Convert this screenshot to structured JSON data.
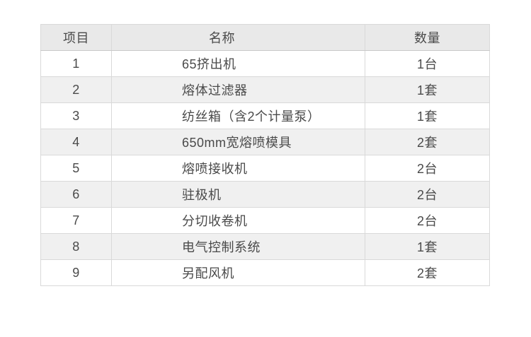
{
  "table": {
    "headers": {
      "item": "项目",
      "name": "名称",
      "qty": "数量"
    },
    "rows": [
      {
        "item": "1",
        "name": "65挤出机",
        "qty": "1台"
      },
      {
        "item": "2",
        "name": "熔体过滤器",
        "qty": "1套"
      },
      {
        "item": "3",
        "name": "纺丝箱（含2个计量泵）",
        "qty": "1套"
      },
      {
        "item": "4",
        "name": "650mm宽熔喷模具",
        "qty": "2套"
      },
      {
        "item": "5",
        "name": "熔喷接收机",
        "qty": "2台"
      },
      {
        "item": "6",
        "name": "驻极机",
        "qty": "2台"
      },
      {
        "item": "7",
        "name": "分切收卷机",
        "qty": "2台"
      },
      {
        "item": "8",
        "name": "电气控制系统",
        "qty": "1套"
      },
      {
        "item": "9",
        "name": "另配风机",
        "qty": "2套"
      }
    ]
  },
  "colors": {
    "outer_border": "#c2c2c2",
    "inner_border": "#d9d9d9",
    "header_bg": "#e9e9e9",
    "stripe_bg": "#f0f0f0",
    "text": "#4a4a4a",
    "page_bg": "#ffffff"
  }
}
